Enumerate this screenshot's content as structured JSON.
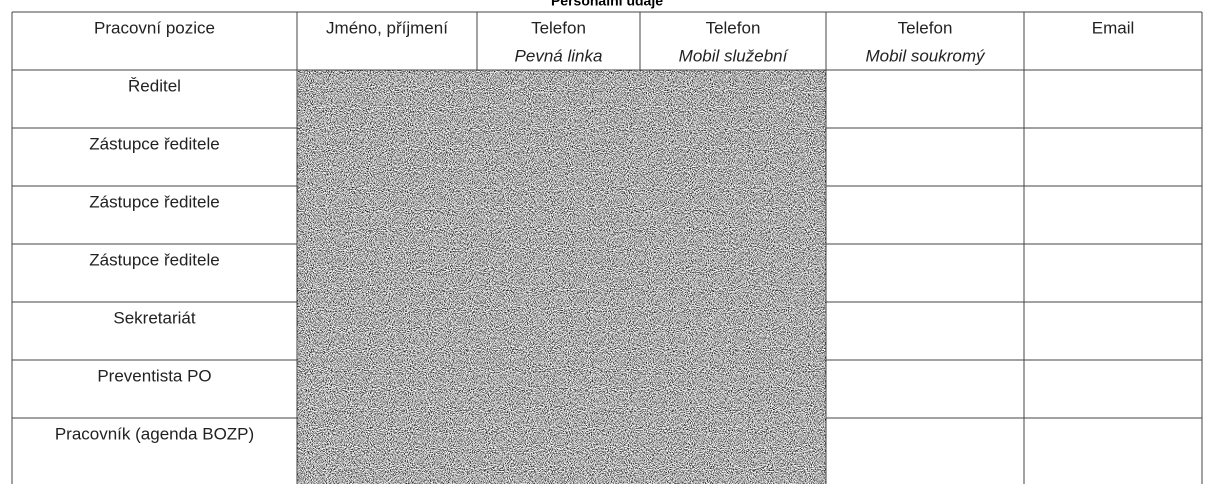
{
  "title": "Personální údaje",
  "table": {
    "header": [
      {
        "line1": "Pracovní pozice"
      },
      {
        "line1": "Jméno, příjmení"
      },
      {
        "line1": "Telefon",
        "line2": "Pevná linka"
      },
      {
        "line1": "Telefon",
        "line2": "Mobil služební"
      },
      {
        "line1": "Telefon",
        "line2": "Mobil soukromý"
      },
      {
        "line1": "Email"
      }
    ],
    "rows": [
      "Ředitel",
      "Zástupce ředitele",
      "Zástupce ředitele",
      "Zástupce ředitele",
      "Sekretariát",
      "Preventista PO",
      "Pracovník (agenda BOZP)"
    ]
  }
}
